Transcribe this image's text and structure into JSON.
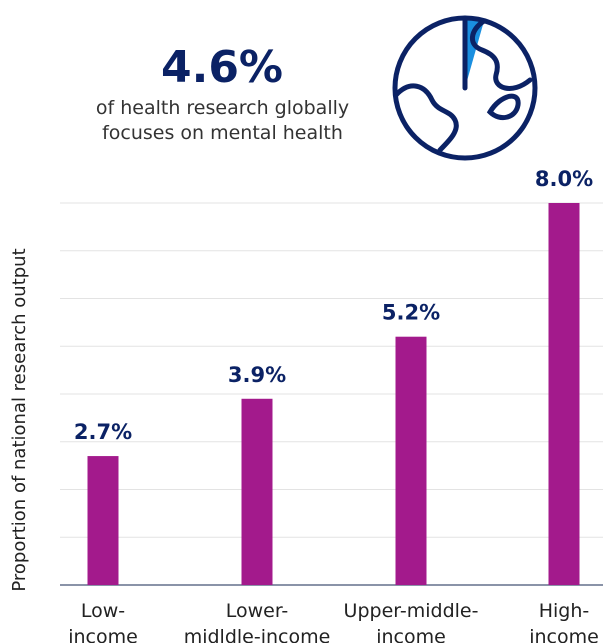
{
  "header": {
    "stat": "4.6%",
    "text": "of health research globally focuses on mental health"
  },
  "chart_data": {
    "type": "bar",
    "y_label": "Proportion of national research output",
    "categories": [
      "Low-income",
      "Lower-midldle-income",
      "Upper-middle-income",
      "High-income"
    ],
    "values": [
      2.7,
      3.9,
      5.2,
      8.0
    ],
    "value_labels": [
      "2.7%",
      "3.9%",
      "5.2%",
      "8.0%"
    ],
    "color": "#a31a8c",
    "ylim": [
      0,
      8
    ],
    "yticks": [
      0,
      1,
      2,
      3,
      4,
      5,
      6,
      7,
      8
    ],
    "grid": true
  }
}
